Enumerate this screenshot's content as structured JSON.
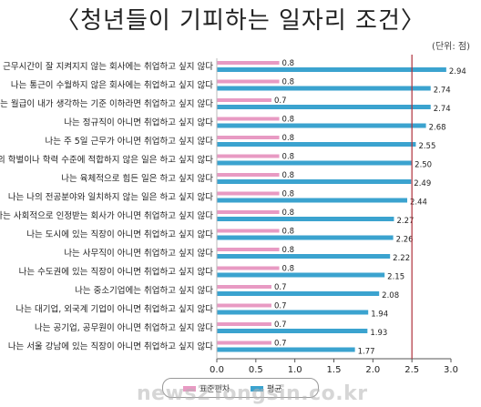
{
  "title": "〈청년들이 기피하는 일자리 조건〉",
  "unit_label": "(단위: 점)",
  "watermark": "news2Tongsin.co.kr",
  "colors": {
    "series_short": "#e89ac3",
    "series_long": "#3ba3cf",
    "ref_line": "#b0303a"
  },
  "chart_data": {
    "type": "bar",
    "orientation": "horizontal",
    "categories": [
      "나는 근무시간이 잘 지켜지지 않는 회사에는 취업하고 싶지 않다",
      "나는 통근이 수월하지 않은 회사에는 취업하고 싶지 않다",
      "나는 월급이 내가 생각하는 기준 이하라면 취업하고 싶지 않다",
      "나는 정규직이 아니면 취업하고 싶지 않다",
      "나는 주 5일 근무가 아니면 취업하고 싶지 않다",
      "나는 나의 학벌이나 학력 수준에 적합하지 않은 일은 하고 싶지 않다",
      "나는 육체적으로 힘든 일은 하고 싶지 않다",
      "나는 나의 전공분야와 일치하지 않는 일은 하고 싶지 않다",
      "나는 사회적으로 인정받는 회사가 아니면 취업하고 싶지 않다",
      "나는 도시에 있는 직장이 아니면 취업하고 싶지 않다",
      "나는 사무직이 아니면 취업하고 싶지 않다",
      "나는 수도권에 있는 직장이 아니면 취업하고 싶지 않다",
      "나는 중소기업에는 취업하고 싶지 않다",
      "나는 대기업, 외국계 기업이 아니면 취업하고 싶지 않다",
      "나는 공기업, 공무원이 아니면 취업하고 싶지 않다",
      "나는 서울 강남에 있는 직장이 아니면 취업하고 싶지 않다"
    ],
    "series": [
      {
        "name": "표준편차",
        "values": [
          0.8,
          0.8,
          0.7,
          0.8,
          0.8,
          0.8,
          0.8,
          0.8,
          0.8,
          0.8,
          0.8,
          0.8,
          0.7,
          0.7,
          0.7,
          0.7
        ]
      },
      {
        "name": "평균",
        "values": [
          2.94,
          2.74,
          2.74,
          2.68,
          2.55,
          2.5,
          2.49,
          2.44,
          2.27,
          2.26,
          2.22,
          2.15,
          2.08,
          1.94,
          1.93,
          1.77
        ]
      }
    ],
    "value_labels": [
      [
        "0.8",
        "0.8",
        "0.7",
        "0.8",
        "0.8",
        "0.8",
        "0.8",
        "0.8",
        "0.8",
        "0.8",
        "0.8",
        "0.8",
        "0.7",
        "0.7",
        "0.7",
        "0.7"
      ],
      [
        "2.94",
        "2.74",
        "2.74",
        "2.68",
        "2.55",
        "2.50",
        "2.49",
        "2.44",
        "2.27",
        "2.26",
        "2.22",
        "2.15",
        "2.08",
        "1.94",
        "1.93",
        "1.77"
      ]
    ],
    "xlim": [
      0,
      3.0
    ],
    "xticks": [
      "0.0",
      "0.5",
      "1.0",
      "1.5",
      "2.0",
      "2.5",
      "3.0"
    ],
    "reference_line": 2.5,
    "grid": false,
    "legend_position": "bottom"
  }
}
